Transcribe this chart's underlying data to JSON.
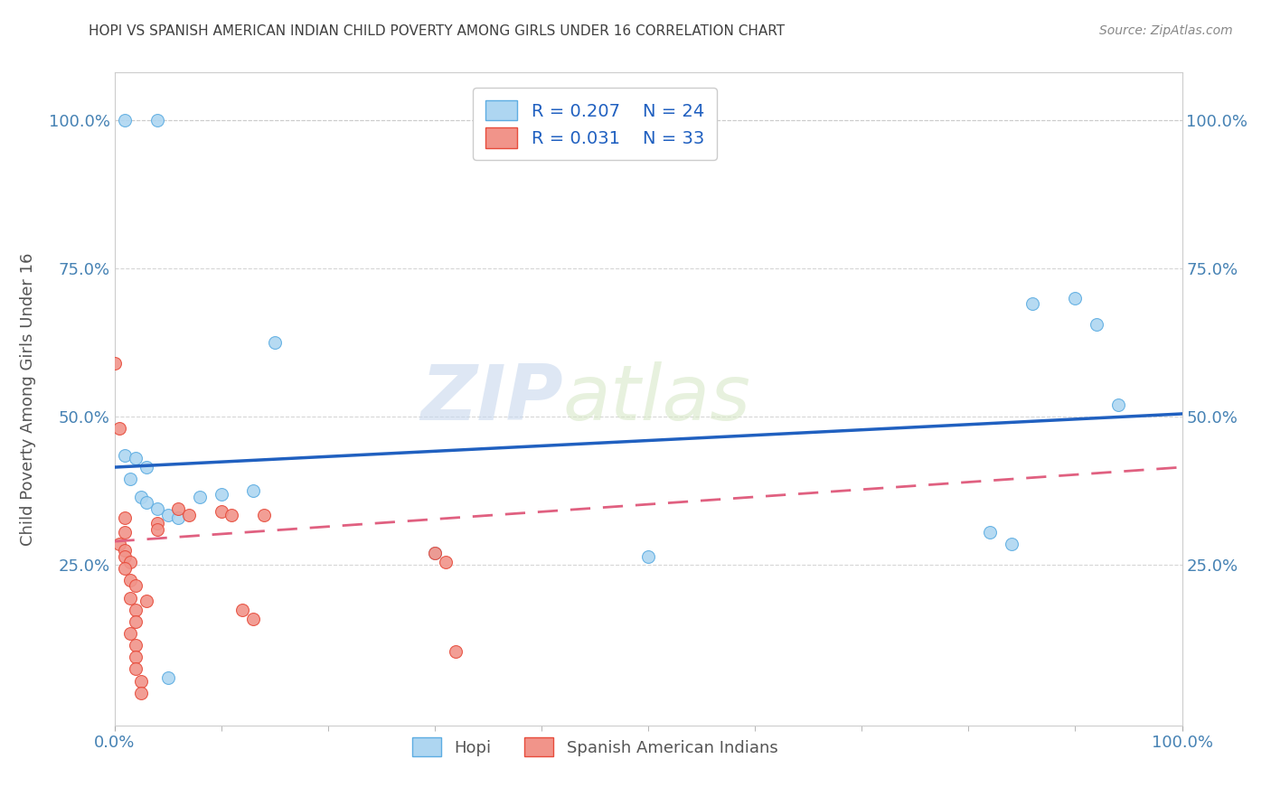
{
  "title": "HOPI VS SPANISH AMERICAN INDIAN CHILD POVERTY AMONG GIRLS UNDER 16 CORRELATION CHART",
  "source": "Source: ZipAtlas.com",
  "ylabel": "Child Poverty Among Girls Under 16",
  "xlim": [
    0,
    1.0
  ],
  "ylim": [
    -0.02,
    1.08
  ],
  "watermark_line1": "ZIP",
  "watermark_line2": "atlas",
  "legend": {
    "hopi_R": "0.207",
    "hopi_N": "24",
    "spanish_R": "0.031",
    "spanish_N": "33"
  },
  "hopi_color": "#AED6F1",
  "hopi_edge_color": "#5DADE2",
  "spanish_color": "#F1948A",
  "spanish_edge_color": "#E74C3C",
  "hopi_scatter": [
    [
      0.01,
      1.0
    ],
    [
      0.04,
      1.0
    ],
    [
      0.01,
      0.435
    ],
    [
      0.015,
      0.395
    ],
    [
      0.025,
      0.365
    ],
    [
      0.03,
      0.355
    ],
    [
      0.04,
      0.345
    ],
    [
      0.05,
      0.335
    ],
    [
      0.06,
      0.33
    ],
    [
      0.03,
      0.415
    ],
    [
      0.08,
      0.365
    ],
    [
      0.1,
      0.37
    ],
    [
      0.13,
      0.375
    ],
    [
      0.15,
      0.625
    ],
    [
      0.3,
      0.27
    ],
    [
      0.5,
      0.265
    ],
    [
      0.82,
      0.305
    ],
    [
      0.84,
      0.285
    ],
    [
      0.86,
      0.69
    ],
    [
      0.9,
      0.7
    ],
    [
      0.92,
      0.655
    ],
    [
      0.94,
      0.52
    ],
    [
      0.05,
      0.06
    ],
    [
      0.02,
      0.43
    ]
  ],
  "spanish_scatter": [
    [
      0.0,
      0.59
    ],
    [
      0.005,
      0.48
    ],
    [
      0.01,
      0.33
    ],
    [
      0.01,
      0.305
    ],
    [
      0.005,
      0.285
    ],
    [
      0.01,
      0.275
    ],
    [
      0.01,
      0.265
    ],
    [
      0.015,
      0.255
    ],
    [
      0.01,
      0.245
    ],
    [
      0.015,
      0.225
    ],
    [
      0.02,
      0.215
    ],
    [
      0.015,
      0.195
    ],
    [
      0.02,
      0.175
    ],
    [
      0.02,
      0.155
    ],
    [
      0.015,
      0.135
    ],
    [
      0.02,
      0.115
    ],
    [
      0.02,
      0.095
    ],
    [
      0.02,
      0.075
    ],
    [
      0.025,
      0.055
    ],
    [
      0.025,
      0.035
    ],
    [
      0.03,
      0.19
    ],
    [
      0.04,
      0.32
    ],
    [
      0.04,
      0.31
    ],
    [
      0.06,
      0.345
    ],
    [
      0.07,
      0.335
    ],
    [
      0.1,
      0.34
    ],
    [
      0.11,
      0.335
    ],
    [
      0.12,
      0.175
    ],
    [
      0.13,
      0.16
    ],
    [
      0.14,
      0.335
    ],
    [
      0.3,
      0.27
    ],
    [
      0.31,
      0.255
    ],
    [
      0.32,
      0.105
    ]
  ],
  "hopi_line_x": [
    0.0,
    1.0
  ],
  "hopi_line_y": [
    0.415,
    0.505
  ],
  "spanish_line_x": [
    0.0,
    1.0
  ],
  "spanish_line_y": [
    0.29,
    0.415
  ],
  "grid_color": "#cccccc",
  "background_color": "#ffffff",
  "title_color": "#404040",
  "axis_label_color": "#555555",
  "tick_label_color": "#4682B4",
  "marker_size": 100,
  "ytick_positions": [
    0.25,
    0.5,
    0.75,
    1.0
  ],
  "ytick_labels": [
    "25.0%",
    "50.0%",
    "75.0%",
    "100.0%"
  ],
  "xtick_positions": [
    0.0,
    1.0
  ],
  "xtick_labels": [
    "0.0%",
    "100.0%"
  ]
}
